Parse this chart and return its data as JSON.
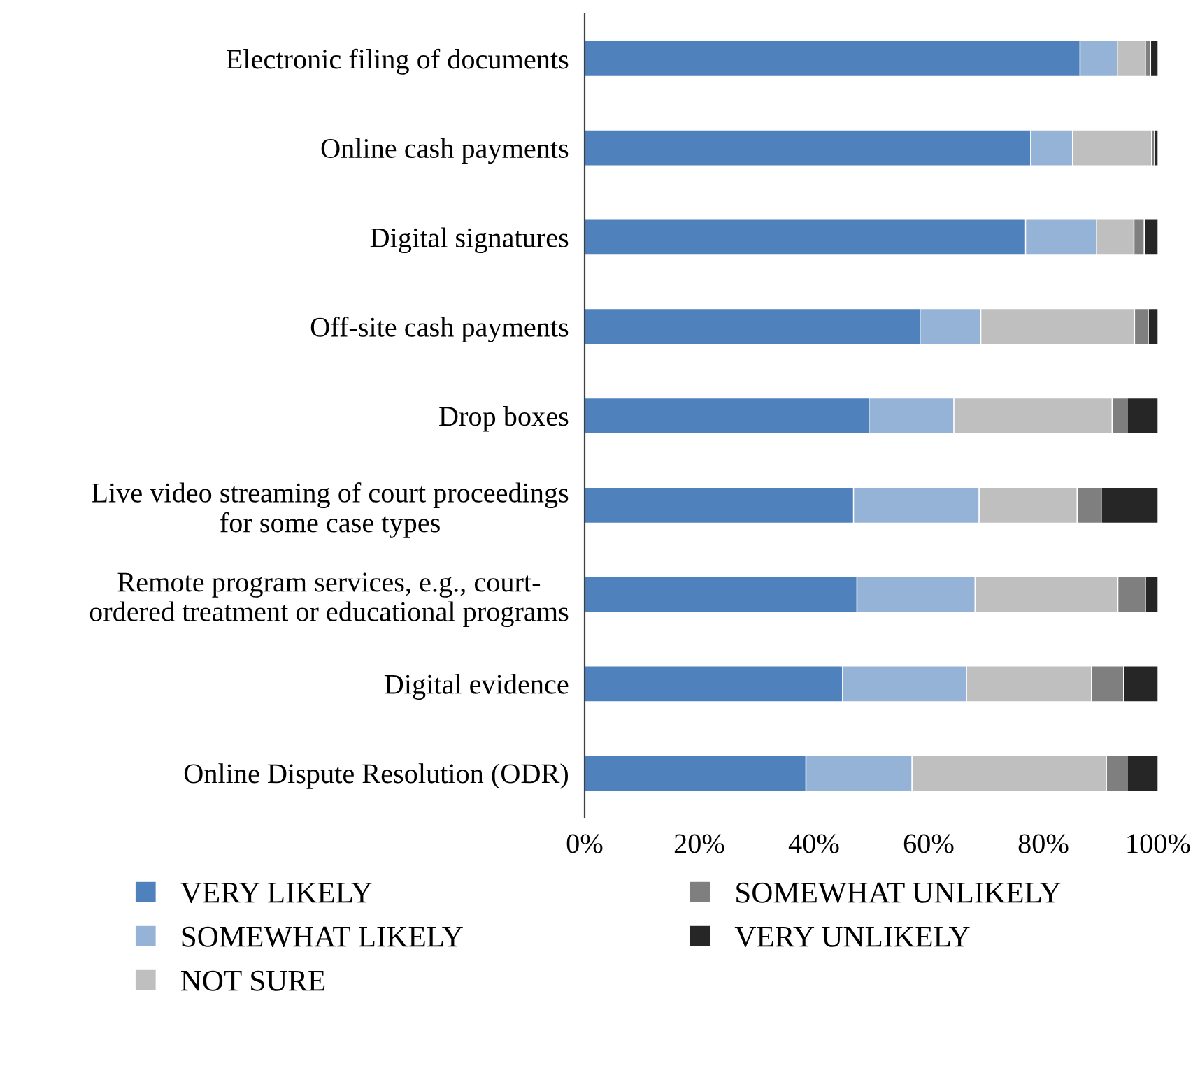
{
  "chart_data": {
    "type": "bar",
    "orientation": "horizontal",
    "stacked": true,
    "categories": [
      "Electronic filing of documents",
      "Online cash payments",
      "Digital signatures",
      "Off-site cash payments",
      "Drop boxes",
      "Live video streaming of court proceedings\nfor some case types",
      "Remote program services, e.g., court-\nordered treatment or educational programs",
      "Digital evidence",
      "Online Dispute Resolution (ODR)"
    ],
    "series": [
      {
        "name": "VERY LIKELY",
        "color": "#4f81bd",
        "values": [
          86.4,
          77.8,
          76.9,
          58.5,
          49.6,
          46.9,
          47.5,
          45.0,
          38.6
        ]
      },
      {
        "name": "SOMEWHAT LIKELY",
        "color": "#95b3d7",
        "values": [
          6.5,
          7.3,
          12.4,
          10.6,
          14.8,
          21.9,
          20.6,
          21.6,
          18.5
        ]
      },
      {
        "name": "NOT SURE",
        "color": "#bfbfbf",
        "values": [
          4.9,
          13.8,
          6.5,
          26.8,
          27.6,
          17.1,
          24.9,
          21.8,
          33.9
        ]
      },
      {
        "name": "SOMEWHAT UNLIKELY",
        "color": "#7f7f7f",
        "values": [
          0.9,
          0.5,
          1.8,
          2.4,
          2.6,
          4.2,
          4.8,
          5.6,
          3.6
        ]
      },
      {
        "name": "VERY UNLIKELY",
        "color": "#262626",
        "values": [
          1.3,
          0.6,
          2.4,
          1.7,
          5.4,
          9.9,
          2.2,
          6.0,
          5.4
        ]
      }
    ],
    "xlim": [
      0,
      100
    ],
    "xticks": [
      {
        "value": 0,
        "label": "0%"
      },
      {
        "value": 20,
        "label": "20%"
      },
      {
        "value": 40,
        "label": "40%"
      },
      {
        "value": 60,
        "label": "60%"
      },
      {
        "value": 80,
        "label": "80%"
      },
      {
        "value": 100,
        "label": "100%"
      }
    ],
    "grid": false,
    "legend": "bottom"
  }
}
